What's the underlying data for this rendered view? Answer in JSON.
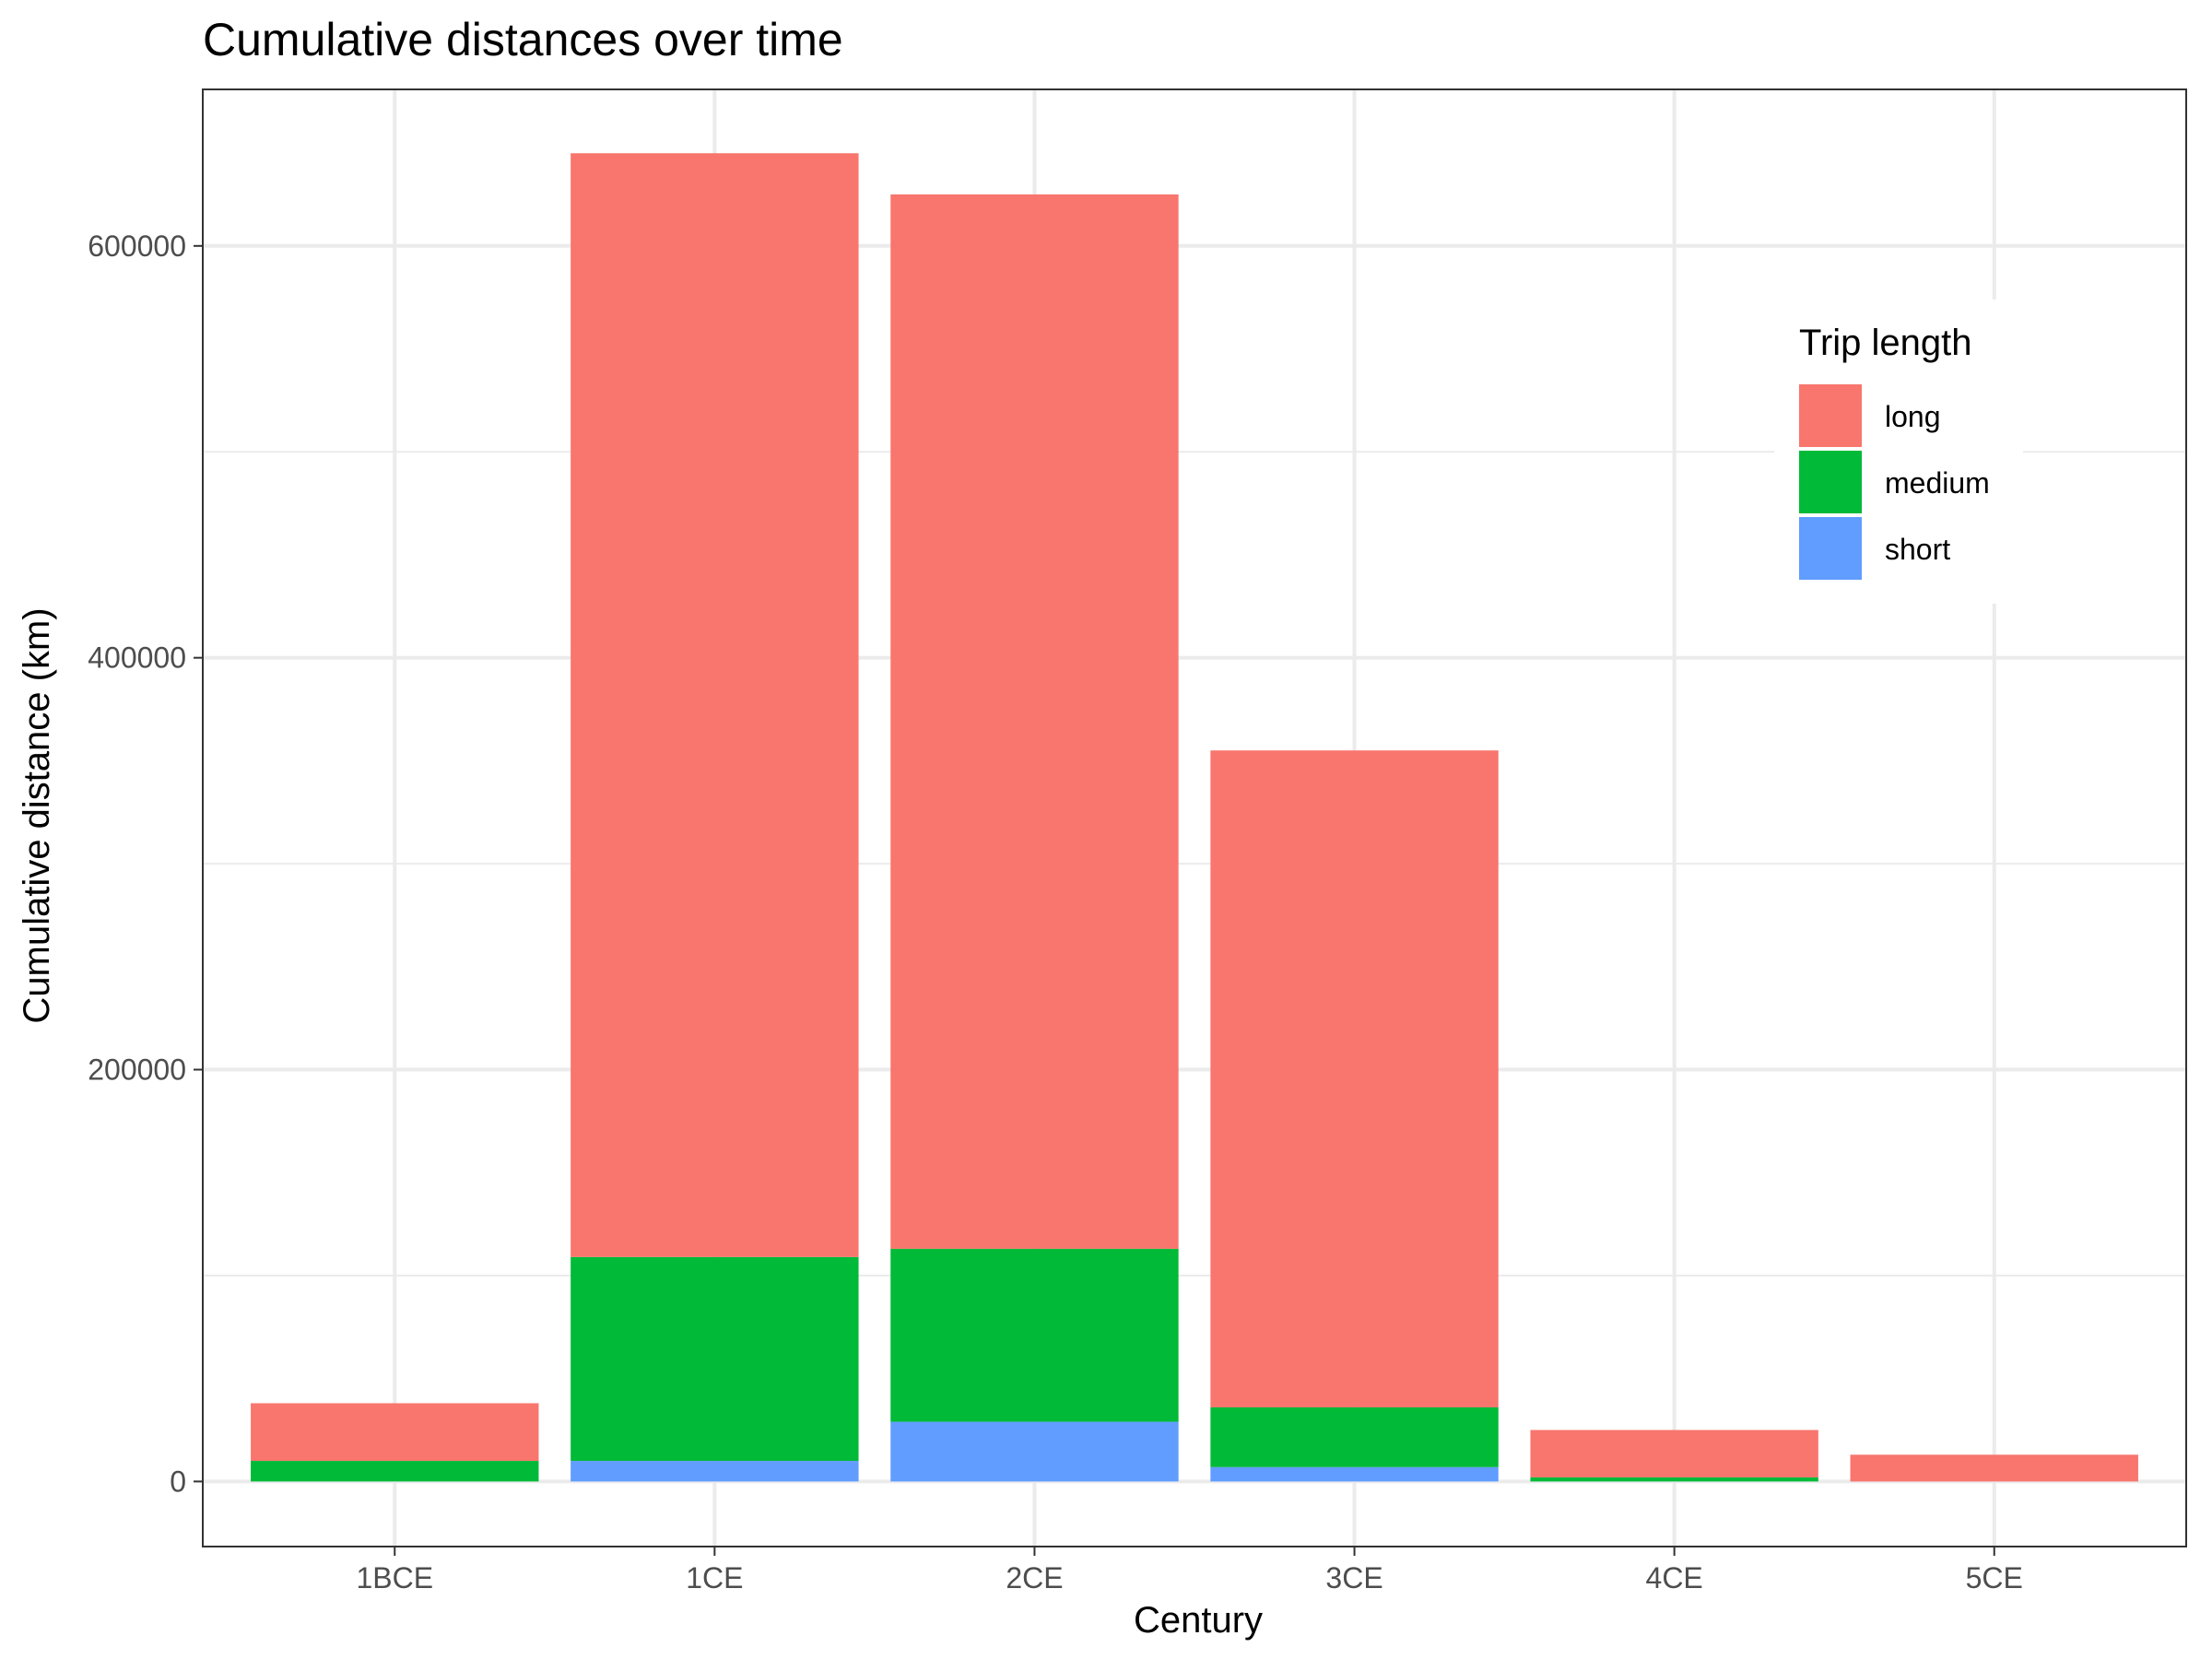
{
  "chart_data": {
    "type": "bar",
    "stacked": true,
    "title": "Cumulative distances over time",
    "xlabel": "Century",
    "ylabel": "Cumulative distance (km)",
    "categories": [
      "1BCE",
      "1CE",
      "2CE",
      "3CE",
      "4CE",
      "5CE"
    ],
    "series": [
      {
        "name": "short",
        "color": "#619CFF",
        "values": [
          0,
          10000,
          29000,
          7000,
          0,
          0
        ]
      },
      {
        "name": "medium",
        "color": "#00BA38",
        "values": [
          10000,
          99000,
          84000,
          29000,
          2000,
          0
        ]
      },
      {
        "name": "long",
        "color": "#F8766D",
        "values": [
          28000,
          536000,
          512000,
          319000,
          23000,
          13000
        ]
      }
    ],
    "ylim": [
      -31600,
      676000
    ],
    "yticks": [
      0,
      200000,
      400000,
      600000
    ],
    "yticks_minor": [
      100000,
      300000,
      500000
    ],
    "grid": true,
    "legend": {
      "title": "Trip length",
      "placement": "top-right-inside",
      "entries": [
        "long",
        "medium",
        "short"
      ]
    }
  }
}
